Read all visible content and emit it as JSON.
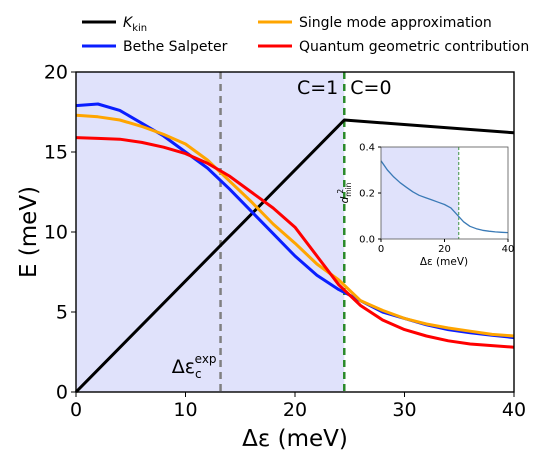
{
  "chart_data": [
    {
      "type": "line",
      "xlabel": "Δε (meV)",
      "ylabel": "E (meV)",
      "xlim": [
        0,
        40
      ],
      "ylim": [
        0,
        20
      ],
      "xticks": [
        "0",
        "10",
        "20",
        "30",
        "40"
      ],
      "yticks": [
        "0",
        "5",
        "10",
        "15",
        "20"
      ],
      "grid": false,
      "legend_position": "top, outside plot, two columns",
      "shaded_region": {
        "x_range": [
          0,
          24.5
        ],
        "color": "#e0e2fb"
      },
      "vlines": [
        {
          "x": 13.2,
          "style": "dashed",
          "color": "#808080"
        },
        {
          "x": 24.5,
          "style": "dashed",
          "color": "#2a8a2a"
        }
      ],
      "annotations": {
        "c1": "C=1",
        "c0": "C=0",
        "eps_c_base": "Δε",
        "eps_c_sub": "c",
        "eps_c_sup": "exp"
      },
      "series": [
        {
          "name": "K",
          "name_sub": "kin",
          "color": "#000000",
          "x": [
            0,
            24.5,
            40
          ],
          "y": [
            0,
            17.0,
            16.2
          ]
        },
        {
          "name": "Bethe Salpeter",
          "color": "#0a1eff",
          "x": [
            0,
            2,
            4,
            6,
            8,
            10,
            12,
            14,
            16,
            18,
            20,
            22,
            24,
            26,
            28,
            30,
            32,
            34,
            36,
            38,
            40
          ],
          "y": [
            17.9,
            18.0,
            17.6,
            16.8,
            16.0,
            15.0,
            14.0,
            12.7,
            11.3,
            9.9,
            8.5,
            7.3,
            6.4,
            5.7,
            5.0,
            4.6,
            4.2,
            3.9,
            3.7,
            3.55,
            3.4
          ]
        },
        {
          "name": "Single mode approximation",
          "color": "#ffa500",
          "x": [
            0,
            2,
            4,
            6,
            8,
            10,
            12,
            14,
            16,
            18,
            20,
            22,
            24,
            26,
            28,
            30,
            32,
            34,
            36,
            38,
            40
          ],
          "y": [
            17.3,
            17.2,
            17.0,
            16.6,
            16.1,
            15.5,
            14.5,
            13.2,
            11.9,
            10.5,
            9.3,
            8.0,
            7.0,
            5.7,
            5.1,
            4.6,
            4.25,
            4.0,
            3.8,
            3.6,
            3.5
          ]
        },
        {
          "name": "Quantum geometric contribution",
          "color": "#ff0000",
          "x": [
            0,
            2,
            4,
            6,
            8,
            10,
            12,
            14,
            16,
            18,
            20,
            22,
            24,
            26,
            28,
            30,
            32,
            34,
            36,
            38,
            40
          ],
          "y": [
            15.9,
            15.85,
            15.8,
            15.6,
            15.3,
            14.9,
            14.3,
            13.5,
            12.5,
            11.5,
            10.3,
            8.5,
            6.7,
            5.4,
            4.5,
            3.9,
            3.5,
            3.2,
            3.0,
            2.9,
            2.8
          ]
        }
      ]
    },
    {
      "type": "line",
      "inset": true,
      "xlabel": "Δε (meV)",
      "ylabel_base": "d",
      "ylabel_sup": "2",
      "ylabel_sub": "min",
      "xlim": [
        0,
        40
      ],
      "ylim": [
        0,
        0.4
      ],
      "xticks": [
        "0",
        "20",
        "40"
      ],
      "yticks": [
        "0.0",
        "0.2",
        "0.4"
      ],
      "shaded_region": {
        "x_range": [
          0,
          24.5
        ],
        "color": "#e0e2fb"
      },
      "vlines": [
        {
          "x": 24.5,
          "style": "dashed",
          "color": "#2a8a2a"
        }
      ],
      "series": [
        {
          "color": "#3a7ab6",
          "x": [
            0,
            2,
            4,
            6,
            8,
            10,
            12,
            14,
            16,
            18,
            20,
            22,
            24,
            26,
            28,
            30,
            32,
            34,
            36,
            38,
            40
          ],
          "y": [
            0.34,
            0.3,
            0.27,
            0.245,
            0.225,
            0.205,
            0.19,
            0.18,
            0.17,
            0.16,
            0.15,
            0.135,
            0.105,
            0.075,
            0.055,
            0.045,
            0.038,
            0.034,
            0.031,
            0.029,
            0.028
          ]
        }
      ]
    }
  ]
}
